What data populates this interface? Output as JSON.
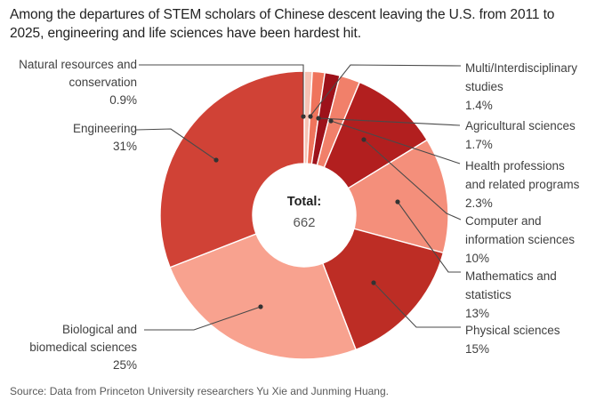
{
  "title": "Among the departures of STEM scholars of Chinese descent leaving the U.S. from 2011 to 2025, engineering and life sciences have been hardest hit.",
  "source": "Source: Data from Princeton University researchers Yu Xie and Junming Huang.",
  "center": {
    "label": "Total:",
    "value": "662"
  },
  "style": {
    "callout_line_color": "#4a4a4a",
    "callout_dot_color": "#333333",
    "segment_gap_color": "#ffffff"
  },
  "chart_data": {
    "type": "pie",
    "subtype": "donut",
    "title": "Departures of STEM scholars of Chinese descent leaving the U.S., 2011-2025, by field",
    "total": 662,
    "center_label": "Total: 662",
    "order": "clockwise from 12 o'clock",
    "legend_position": "callout labels",
    "segments": [
      {
        "id": "natural-resources",
        "name": "Natural resources and conservation",
        "value": 0.9,
        "color": "#f6c2b4",
        "lines": [
          "Natural resources and",
          "conservation",
          "0.9%"
        ]
      },
      {
        "id": "multi-interdisciplinary",
        "name": "Multi/Interdisciplinary studies",
        "value": 1.4,
        "color": "#ef745c",
        "lines": [
          "Multi/Interdisciplinary",
          "studies",
          "1.4%"
        ]
      },
      {
        "id": "agricultural",
        "name": "Agricultural sciences",
        "value": 1.7,
        "color": "#9d121a",
        "lines": [
          "Agricultural sciences",
          "1.7%"
        ]
      },
      {
        "id": "health-professions",
        "name": "Health professions and related programs",
        "value": 2.3,
        "color": "#f1806a",
        "lines": [
          "Health professions",
          "and related programs",
          "2.3%"
        ]
      },
      {
        "id": "computer-information",
        "name": "Computer and information sciences",
        "value": 10,
        "color": "#b21f1f",
        "lines": [
          "Computer and",
          "information sciences",
          "10%"
        ]
      },
      {
        "id": "mathematics-statistics",
        "name": "Mathematics and statistics",
        "value": 13,
        "color": "#f48f7b",
        "lines": [
          "Mathematics and",
          "statistics",
          "13%"
        ]
      },
      {
        "id": "physical-sciences",
        "name": "Physical sciences",
        "value": 15,
        "color": "#bd2d25",
        "lines": [
          "Physical sciences",
          "15%"
        ]
      },
      {
        "id": "biological-biomedical",
        "name": "Biological and biomedical sciences",
        "value": 25,
        "color": "#f8a28f",
        "lines": [
          "Biological and",
          "biomedical sciences",
          "25%"
        ]
      },
      {
        "id": "engineering",
        "name": "Engineering",
        "value": 31,
        "color": "#d04236",
        "lines": [
          "Engineering",
          "31%"
        ]
      }
    ]
  }
}
